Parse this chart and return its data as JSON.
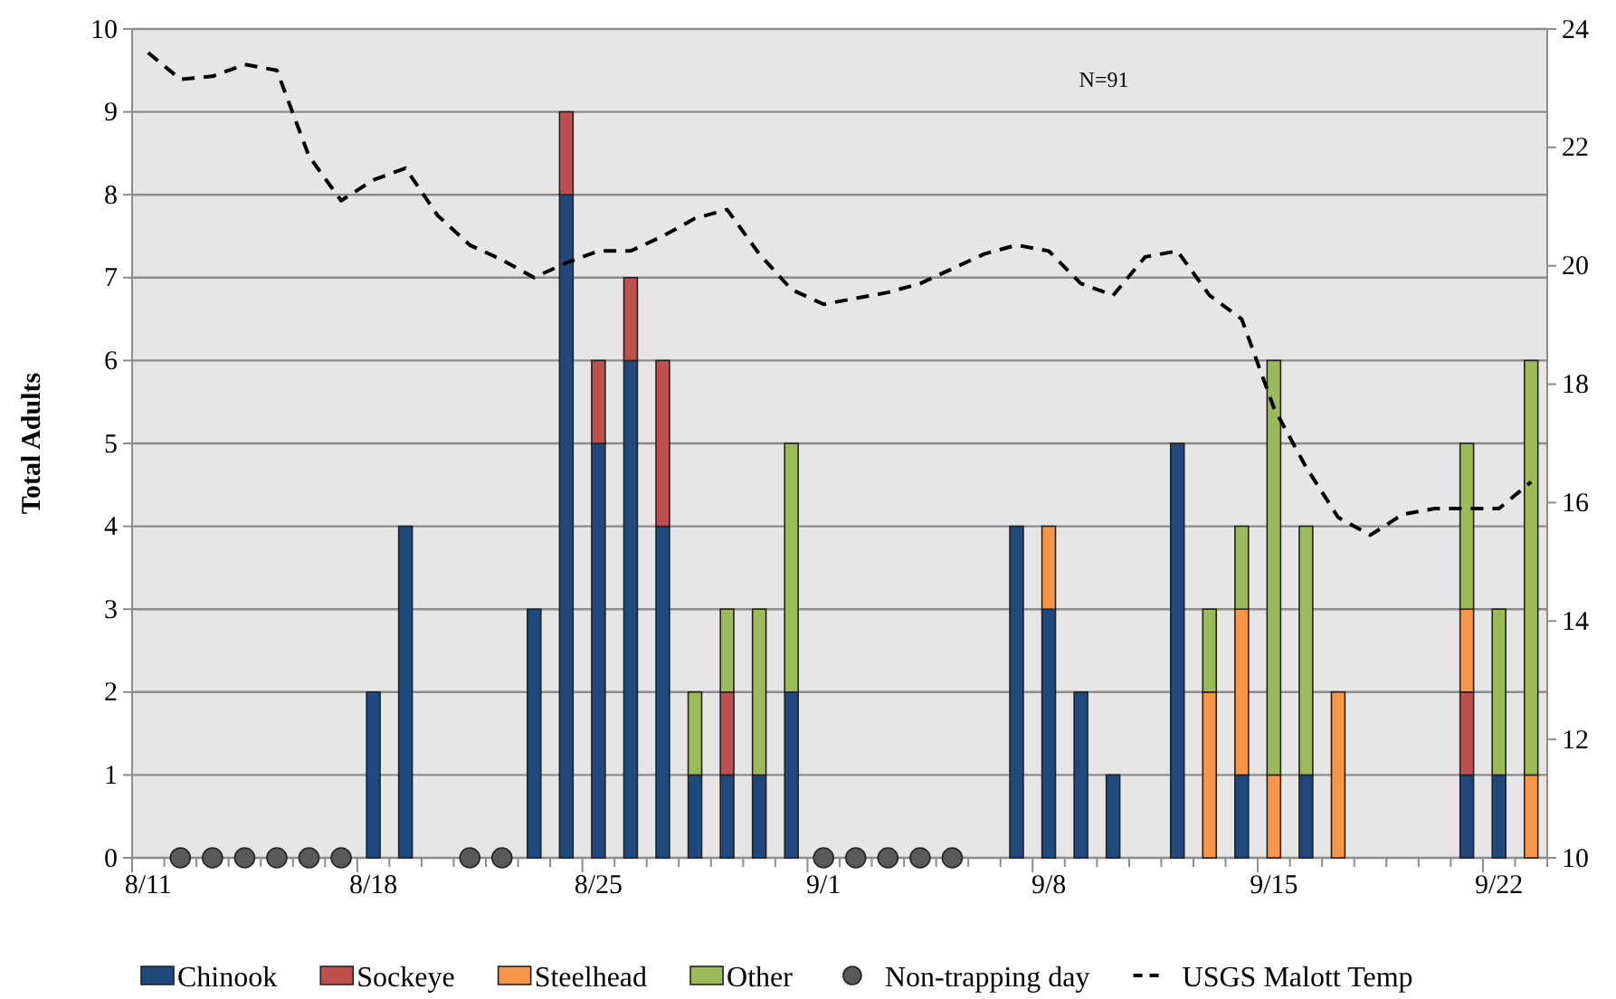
{
  "chart_data": {
    "type": "bar",
    "stacked": true,
    "ylabel": "Total Adults",
    "ylim": [
      0,
      10
    ],
    "yticks": [
      0,
      1,
      2,
      3,
      4,
      5,
      6,
      7,
      8,
      9,
      10
    ],
    "y2lim": [
      10,
      24
    ],
    "y2ticks": [
      10,
      12,
      14,
      16,
      18,
      20,
      22,
      24
    ],
    "grid": "y",
    "legend": "bottom",
    "annotations": [
      "N=91"
    ],
    "categories": [
      "8/11",
      null,
      null,
      null,
      null,
      null,
      null,
      "8/18",
      null,
      null,
      null,
      null,
      null,
      null,
      "8/25",
      null,
      null,
      null,
      null,
      null,
      null,
      "9/1",
      null,
      null,
      null,
      null,
      null,
      null,
      "9/8",
      null,
      null,
      null,
      null,
      null,
      null,
      "9/15",
      null,
      null,
      null,
      null,
      null,
      null,
      "9/22",
      null
    ],
    "series": [
      {
        "name": "Chinook",
        "color": "#1f497d",
        "values": [
          null,
          null,
          null,
          null,
          null,
          null,
          null,
          2,
          4,
          null,
          null,
          null,
          3,
          8,
          5,
          6,
          4,
          1,
          1,
          1,
          2,
          null,
          null,
          null,
          null,
          null,
          null,
          4,
          3,
          2,
          1,
          null,
          5,
          null,
          1,
          null,
          1,
          null,
          null,
          null,
          null,
          1,
          1,
          null
        ]
      },
      {
        "name": "Sockeye",
        "color": "#c0504d",
        "values": [
          null,
          null,
          null,
          null,
          null,
          null,
          null,
          null,
          null,
          null,
          null,
          null,
          null,
          1,
          1,
          1,
          2,
          null,
          1,
          null,
          null,
          null,
          null,
          null,
          null,
          null,
          null,
          null,
          null,
          null,
          null,
          null,
          null,
          null,
          null,
          null,
          null,
          null,
          null,
          null,
          null,
          1,
          null,
          null
        ]
      },
      {
        "name": "Steelhead",
        "color": "#f79646",
        "values": [
          null,
          null,
          null,
          null,
          null,
          null,
          null,
          null,
          null,
          null,
          null,
          null,
          null,
          null,
          null,
          null,
          null,
          null,
          null,
          null,
          null,
          null,
          null,
          null,
          null,
          null,
          null,
          null,
          1,
          null,
          null,
          null,
          null,
          2,
          2,
          1,
          null,
          2,
          null,
          null,
          null,
          1,
          null,
          1
        ]
      },
      {
        "name": "Other",
        "color": "#9bbb59",
        "values": [
          null,
          null,
          null,
          null,
          null,
          null,
          null,
          null,
          null,
          null,
          null,
          null,
          null,
          null,
          null,
          null,
          null,
          1,
          1,
          2,
          3,
          null,
          null,
          null,
          null,
          null,
          null,
          null,
          null,
          null,
          null,
          null,
          null,
          1,
          1,
          5,
          3,
          null,
          null,
          null,
          null,
          2,
          2,
          5
        ]
      },
      {
        "name": "Non-trapping day",
        "type": "scatter",
        "marker": "circle",
        "color": "#595959",
        "values": [
          null,
          0,
          0,
          0,
          0,
          0,
          0,
          null,
          null,
          null,
          0,
          0,
          null,
          null,
          null,
          null,
          null,
          null,
          null,
          null,
          null,
          0,
          0,
          0,
          0,
          0,
          null,
          null,
          null,
          null,
          null,
          null,
          null,
          null,
          null,
          null,
          null,
          null,
          null,
          null,
          null,
          null,
          null,
          null
        ]
      },
      {
        "name": "USGS Malott Temp",
        "type": "line",
        "axis": "y2",
        "line_style": "dashed",
        "color": "#000000",
        "values": [
          23.6,
          23.15,
          23.2,
          23.4,
          23.3,
          21.85,
          21.1,
          21.45,
          21.65,
          20.85,
          20.35,
          20.1,
          19.8,
          20.05,
          20.25,
          20.25,
          20.5,
          20.8,
          20.95,
          20.2,
          19.6,
          19.35,
          19.45,
          19.55,
          19.7,
          19.95,
          20.2,
          20.35,
          20.25,
          19.7,
          19.5,
          20.15,
          20.25,
          19.5,
          19.1,
          17.6,
          16.6,
          15.75,
          15.45,
          15.8,
          15.9,
          15.9,
          15.9,
          16.35
        ]
      }
    ]
  }
}
